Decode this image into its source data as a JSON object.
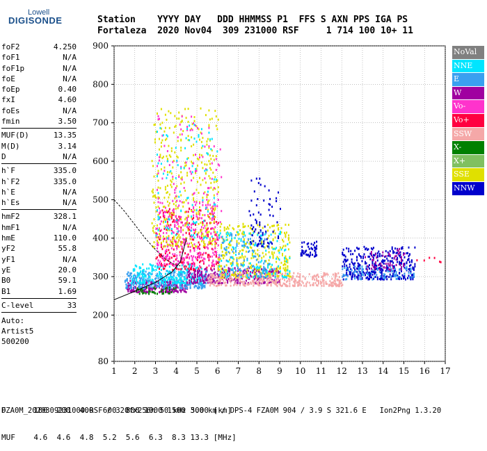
{
  "logo": {
    "line1": "Lowell",
    "line2": "DIGISONDE"
  },
  "header": {
    "labels": "Station    YYYY DAY   DDD HHMMSS P1  FFS S AXN PPS IGA PS",
    "values": "Fortaleza  2020 Nov04  309 231000 RSF     1 714 100 10+ 11"
  },
  "params": [
    {
      "name": "foF2",
      "value": "4.250"
    },
    {
      "name": "foF1",
      "value": "N/A"
    },
    {
      "name": "foF1p",
      "value": "N/A"
    },
    {
      "name": "foE",
      "value": "N/A"
    },
    {
      "name": "foEp",
      "value": "0.40"
    },
    {
      "name": "fxI",
      "value": "4.60"
    },
    {
      "name": "foEs",
      "value": "N/A"
    },
    {
      "name": "fmin",
      "value": "3.50"
    },
    {
      "name": "MUF(D)",
      "value": "13.35"
    },
    {
      "name": "M(D)",
      "value": "3.14"
    },
    {
      "name": "D",
      "value": "N/A"
    },
    {
      "name": "h`F",
      "value": "335.0"
    },
    {
      "name": "h`F2",
      "value": "335.0"
    },
    {
      "name": "h`E",
      "value": "N/A"
    },
    {
      "name": "h`Es",
      "value": "N/A"
    },
    {
      "name": "hmF2",
      "value": "328.1"
    },
    {
      "name": "hmF1",
      "value": "N/A"
    },
    {
      "name": "hmE",
      "value": "110.0"
    },
    {
      "name": "yF2",
      "value": "55.8"
    },
    {
      "name": "yF1",
      "value": "N/A"
    },
    {
      "name": "yE",
      "value": "20.0"
    },
    {
      "name": "B0",
      "value": "59.1"
    },
    {
      "name": "B1",
      "value": "1.69"
    },
    {
      "name": "C-level",
      "value": "33"
    }
  ],
  "auto": {
    "line1": "Auto:",
    "line2": "Artist5",
    "line3": "500200"
  },
  "legend": [
    {
      "label": "NoVal",
      "color": "#808080"
    },
    {
      "label": "NNE",
      "color": "#00e5ff"
    },
    {
      "label": "E",
      "color": "#3aa0f0"
    },
    {
      "label": "W",
      "color": "#a000a0"
    },
    {
      "label": "Vo-",
      "color": "#ff33cc"
    },
    {
      "label": "Vo+",
      "color": "#ff0040"
    },
    {
      "label": "SSW",
      "color": "#f5a8a8"
    },
    {
      "label": "X-",
      "color": "#008000"
    },
    {
      "label": "X+",
      "color": "#80c060"
    },
    {
      "label": "SSE",
      "color": "#e0e000"
    },
    {
      "label": "NNW",
      "color": "#0000cc"
    }
  ],
  "footer": {
    "d_line": "D      100  200  400  600  800 1000 1500 3000 [km]",
    "muf_line": "MUF    4.6  4.6  4.8  5.2  5.6  6.3  8.3 13.3 [MHz]",
    "file_line": "FZA0M_2020309231000.RSF / 320fx256h 50 kHz 5.0 km / DPS-4 FZA0M 904 / 3.9 S 321.6 E   Ion2Png 1.3.20"
  },
  "chart_data": {
    "type": "scatter",
    "x_range": [
      1,
      17
    ],
    "y_range": [
      80,
      900
    ],
    "x_ticks": [
      "1",
      "2",
      "3",
      "4",
      "5",
      "6",
      "7",
      "8",
      "9",
      "10",
      "11",
      "12",
      "13",
      "14",
      "15",
      "16",
      "17"
    ],
    "y_ticks": [
      "80",
      "200",
      "300",
      "400",
      "500",
      "600",
      "700",
      "800",
      "900"
    ],
    "clusters": [
      {
        "x": [
          1.6,
          4.5
        ],
        "y": [
          262,
          292
        ],
        "n": 260,
        "color": "#a000a0"
      },
      {
        "x": [
          1.5,
          5.5
        ],
        "y": [
          272,
          318
        ],
        "n": 320,
        "color": "#3aa0f0"
      },
      {
        "x": [
          1.8,
          5.2
        ],
        "y": [
          285,
          335
        ],
        "n": 220,
        "color": "#00e5ff"
      },
      {
        "x": [
          2.0,
          4.0
        ],
        "y": [
          258,
          275
        ],
        "n": 40,
        "color": "#008000"
      },
      {
        "x": [
          4.5,
          9.0
        ],
        "y": [
          285,
          325
        ],
        "n": 320,
        "color": "#a000a0"
      },
      {
        "x": [
          5.5,
          12.0
        ],
        "y": [
          278,
          312
        ],
        "n": 380,
        "color": "#f5a8a8"
      },
      {
        "x": [
          3.0,
          6.0
        ],
        "y": [
          320,
          480
        ],
        "n": 260,
        "color": "#ff0040"
      },
      {
        "x": [
          3.0,
          6.0
        ],
        "y": [
          330,
          500
        ],
        "n": 220,
        "color": "#ff33cc"
      },
      {
        "x": [
          2.8,
          6.0
        ],
        "y": [
          380,
          740
        ],
        "n": 380,
        "color": "#e0e000"
      },
      {
        "x": [
          3.0,
          6.2
        ],
        "y": [
          330,
          720
        ],
        "n": 160,
        "color": "#ff33cc"
      },
      {
        "x": [
          3.0,
          6.0
        ],
        "y": [
          400,
          700
        ],
        "n": 100,
        "color": "#00e5ff"
      },
      {
        "x": [
          6.0,
          9.5
        ],
        "y": [
          300,
          440
        ],
        "n": 340,
        "color": "#e0e000"
      },
      {
        "x": [
          6.0,
          9.5
        ],
        "y": [
          300,
          420
        ],
        "n": 140,
        "color": "#00e5ff"
      },
      {
        "x": [
          6.0,
          8.5
        ],
        "y": [
          300,
          420
        ],
        "n": 100,
        "color": "#3aa0f0"
      },
      {
        "x": [
          7.5,
          9.0
        ],
        "y": [
          380,
          560
        ],
        "n": 70,
        "color": "#0000cc"
      },
      {
        "x": [
          10.0,
          10.8
        ],
        "y": [
          355,
          395
        ],
        "n": 50,
        "color": "#0000cc"
      },
      {
        "x": [
          12.0,
          15.5
        ],
        "y": [
          295,
          380
        ],
        "n": 380,
        "color": "#0000cc"
      },
      {
        "x": [
          12.0,
          15.5
        ],
        "y": [
          295,
          330
        ],
        "n": 90,
        "color": "#3aa0f0"
      },
      {
        "x": [
          13.0,
          15.0
        ],
        "y": [
          320,
          375
        ],
        "n": 60,
        "color": "#a000a0"
      },
      {
        "x": [
          15.5,
          16.9
        ],
        "y": [
          340,
          352
        ],
        "n": 6,
        "color": "#ff0040"
      }
    ],
    "curve_x": [
      1.0,
      1.5,
      2.0,
      2.5,
      3.0,
      3.5,
      3.8,
      4.0,
      4.2
    ],
    "curve_y": [
      500,
      470,
      435,
      400,
      370,
      345,
      335,
      330,
      328
    ],
    "curve2_x": [
      1.0,
      2.0,
      3.0,
      3.8,
      4.2,
      4.5
    ],
    "curve2_y": [
      240,
      262,
      285,
      312,
      338,
      400
    ]
  }
}
